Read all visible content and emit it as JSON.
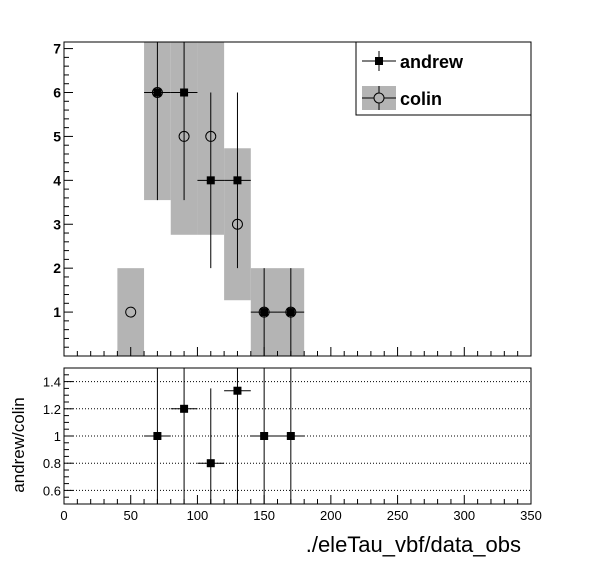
{
  "chart_data": [
    {
      "type": "scatter",
      "subtype": "histogram-comparison",
      "xlim": [
        0,
        350
      ],
      "ylim": [
        0,
        7.15
      ],
      "yticks": [
        "1",
        "2",
        "3",
        "4",
        "5",
        "6",
        "7"
      ],
      "legend": {
        "placement": "top-right",
        "entries": [
          "andrew",
          "colin"
        ]
      },
      "series": [
        {
          "name": "andrew",
          "marker": "filled-square",
          "x": [
            70,
            90,
            110,
            130,
            150,
            170
          ],
          "y": [
            6,
            6,
            4,
            4,
            1,
            1
          ],
          "xerr": [
            10,
            10,
            10,
            10,
            10,
            10
          ],
          "yerr": [
            2.45,
            2.45,
            2,
            2,
            1,
            1
          ]
        },
        {
          "name": "colin",
          "marker": "open-circle",
          "band_color": "#b4b4b4",
          "x": [
            50,
            70,
            90,
            110,
            130,
            150,
            170
          ],
          "y": [
            1,
            6,
            5,
            5,
            3,
            1,
            1
          ],
          "xerr": [
            10,
            10,
            10,
            10,
            10,
            10,
            10
          ],
          "yerr": [
            1,
            2.45,
            2.24,
            2.24,
            1.73,
            1,
            1
          ]
        }
      ]
    },
    {
      "type": "scatter",
      "subtype": "ratio",
      "ylabel": "andrew/colin",
      "xlabel": "./eleTau_vbf/data_obs",
      "xlim": [
        0,
        350
      ],
      "ylim": [
        0.5,
        1.5
      ],
      "yticks": [
        "0.6",
        "0.8",
        "1",
        "1.2",
        "1.4"
      ],
      "xticks": [
        "0",
        "50",
        "100",
        "150",
        "200",
        "250",
        "300",
        "350"
      ],
      "grid": "horizontal-dotted",
      "series": [
        {
          "name": "andrew/colin",
          "marker": "filled-square",
          "x": [
            70,
            90,
            110,
            130,
            150,
            170
          ],
          "y": [
            1,
            1.2,
            0.8,
            1.333,
            1,
            1
          ],
          "xerr": [
            10,
            10,
            10,
            10,
            10,
            10
          ],
          "yerr": [
            1.5,
            1.5,
            0.55,
            1.2,
            1.5,
            1.5
          ]
        }
      ]
    }
  ]
}
